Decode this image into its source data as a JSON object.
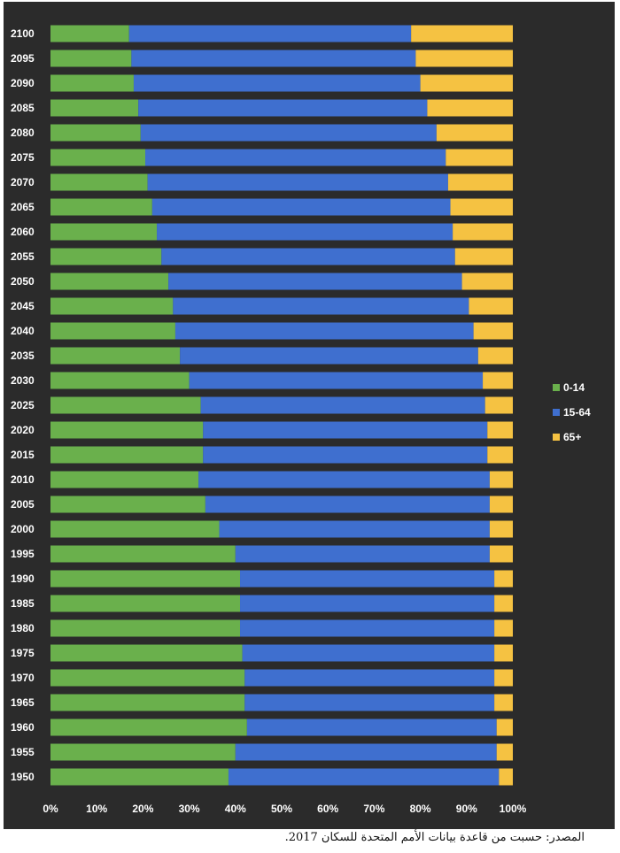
{
  "chart_data": {
    "type": "bar",
    "orientation": "horizontal",
    "stacked": "percent",
    "categories": [
      "2100",
      "2095",
      "2090",
      "2085",
      "2080",
      "2075",
      "2070",
      "2065",
      "2060",
      "2055",
      "2050",
      "2045",
      "2040",
      "2035",
      "2030",
      "2025",
      "2020",
      "2015",
      "2010",
      "2005",
      "2000",
      "1995",
      "1990",
      "1985",
      "1980",
      "1975",
      "1970",
      "1965",
      "1960",
      "1955",
      "1950"
    ],
    "series": [
      {
        "name": "0-14",
        "color": "#6ab04c",
        "values": [
          17,
          17.5,
          18,
          19,
          19.5,
          20.5,
          21,
          22,
          23,
          24,
          25.5,
          26.5,
          27,
          28,
          30,
          32.5,
          33,
          33,
          32,
          33.5,
          36.5,
          40,
          41,
          41,
          41,
          41.5,
          42,
          42,
          42.5,
          40,
          38.5
        ]
      },
      {
        "name": "15-64",
        "color": "#3f6fcf",
        "values": [
          61,
          61.5,
          62,
          62.5,
          64,
          65,
          65,
          64.5,
          64,
          63.5,
          63.5,
          64,
          64.5,
          64.5,
          63.5,
          61.5,
          61.5,
          61.5,
          63,
          61.5,
          58.5,
          55,
          55,
          55,
          55,
          54.5,
          54,
          54,
          54,
          56.5,
          58.5
        ]
      },
      {
        "name": "65+",
        "color": "#f5c242",
        "values": [
          22,
          21,
          20,
          18.5,
          16.5,
          14.5,
          14,
          13.5,
          13,
          12.5,
          11,
          9.5,
          8.5,
          7.5,
          6.5,
          6,
          5.5,
          5.5,
          5,
          5,
          5,
          5,
          4,
          4,
          4,
          4,
          4,
          4,
          3.5,
          3.5,
          3
        ]
      }
    ],
    "xlim": [
      0,
      100
    ],
    "xticks": [
      "0%",
      "10%",
      "20%",
      "30%",
      "40%",
      "50%",
      "60%",
      "70%",
      "80%",
      "90%",
      "100%"
    ],
    "grid": false,
    "legend": "right"
  },
  "footer": {
    "source": "المصدر: حسبت من قاعدة بيانات الأمم المتحدة للسكان 2017."
  }
}
